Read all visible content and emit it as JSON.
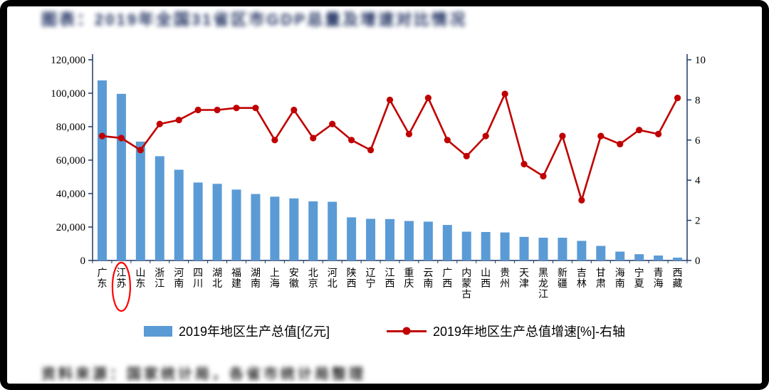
{
  "colors": {
    "bar": "#5B9BD5",
    "line": "#C00000",
    "axis": "#1F3864",
    "highlight": "#FF0000",
    "title_text": "#1F3060",
    "frame": "#000000",
    "canvas": "#FFFFFF"
  },
  "title": {
    "text": "图表：2019年全国31省区市GDP总量及增速对比情况",
    "blurred": true
  },
  "footer": {
    "text": "资料来源：国家统计局，各省市统计局整理",
    "blurred": true
  },
  "chart_data": {
    "type": "bar",
    "combo": "bar+line",
    "title": "",
    "grid": false,
    "legend_position": "bottom",
    "categories": [
      "广东",
      "江苏",
      "山东",
      "浙江",
      "河南",
      "四川",
      "湖北",
      "福建",
      "湖南",
      "上海",
      "安徽",
      "北京",
      "河北",
      "陕西",
      "辽宁",
      "江西",
      "重庆",
      "云南",
      "广西",
      "内蒙古",
      "山西",
      "贵州",
      "天津",
      "黑龙江",
      "新疆",
      "吉林",
      "甘肃",
      "海南",
      "宁夏",
      "青海",
      "西藏"
    ],
    "series": [
      {
        "name": "2019年地区生产总值[亿元]",
        "type": "bar",
        "axis": "left",
        "color": "#5B9BD5",
        "values": [
          107671,
          99632,
          71068,
          62352,
          54259,
          46616,
          45828,
          42395,
          39752,
          38155,
          37114,
          35371,
          35105,
          25793,
          24909,
          24758,
          23606,
          23224,
          21237,
          17213,
          17027,
          16769,
          14104,
          13613,
          13597,
          11727,
          8718,
          5309,
          3748,
          2966,
          1698
        ]
      },
      {
        "name": "2019年地区生产总值增速[%]-右轴",
        "type": "line",
        "axis": "right",
        "color": "#C00000",
        "values": [
          6.2,
          6.1,
          5.5,
          6.8,
          7.0,
          7.5,
          7.5,
          7.6,
          7.6,
          6.0,
          7.5,
          6.1,
          6.8,
          6.0,
          5.5,
          8.0,
          6.3,
          8.1,
          6.0,
          5.2,
          6.2,
          8.3,
          4.8,
          4.2,
          6.2,
          3.0,
          6.2,
          5.8,
          6.5,
          6.3,
          8.1
        ]
      }
    ],
    "left_axis": {
      "min": 0,
      "max": 120000,
      "tick_values": [
        0,
        20000,
        40000,
        60000,
        80000,
        100000,
        120000
      ],
      "tick_labels": [
        "0",
        "20,000",
        "40,000",
        "60,000",
        "80,000",
        "100,000",
        "120,000"
      ]
    },
    "right_axis": {
      "min": 0,
      "max": 10,
      "tick_values": [
        0,
        2,
        4,
        6,
        8,
        10
      ],
      "tick_labels": [
        "0",
        "2",
        "4",
        "6",
        "8",
        "10"
      ]
    },
    "highlight": {
      "category": "江苏",
      "shape": "ellipse",
      "color": "#FF0000"
    }
  }
}
